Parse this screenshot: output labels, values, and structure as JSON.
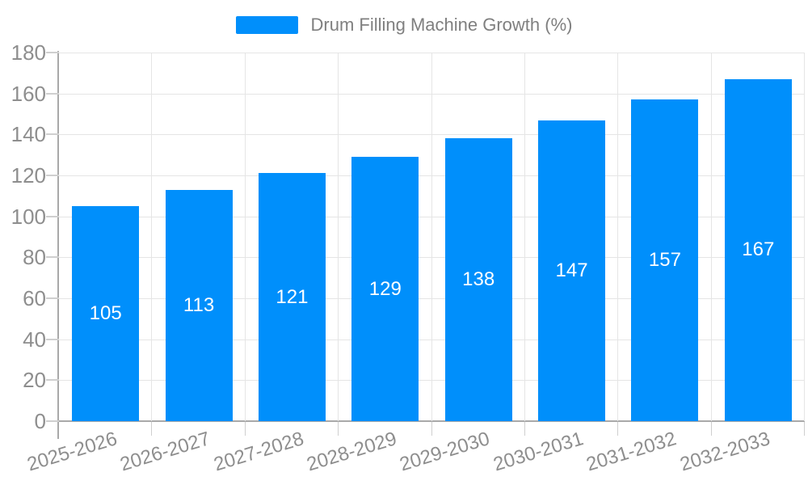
{
  "chart_data": {
    "type": "bar",
    "title": "Drum Filling Machine Growth (%)",
    "categories": [
      "2025-2026",
      "2026-2027",
      "2027-2028",
      "2028-2029",
      "2029-2030",
      "2030-2031",
      "2031-2032",
      "2032-2033"
    ],
    "series": [
      {
        "name": "Drum Filling Machine Growth (%)",
        "values": [
          105,
          113,
          121,
          129,
          138,
          147,
          157,
          167
        ]
      }
    ],
    "xlabel": "",
    "ylabel": "",
    "ylim": [
      0,
      180
    ],
    "ytick_step": 20,
    "ytick_labels": [
      "0",
      "20",
      "40",
      "60",
      "80",
      "100",
      "120",
      "140",
      "160",
      "180"
    ],
    "grid": true,
    "legend_position": "top-center",
    "x_label_rotation_deg": -17,
    "datalabels": "centered-inside-bars"
  },
  "legend": {
    "label": "Drum Filling Machine Growth (%)"
  },
  "colors": {
    "bar": "#008FFB",
    "datalabel_text": "#ffffff",
    "grid": "#e5e5e5",
    "axis_line": "#a9a9a9",
    "tick": "#cfcfcf",
    "axis_text": "#8e8e8e",
    "legend_text": "#7f7f7f",
    "background": "#ffffff"
  }
}
